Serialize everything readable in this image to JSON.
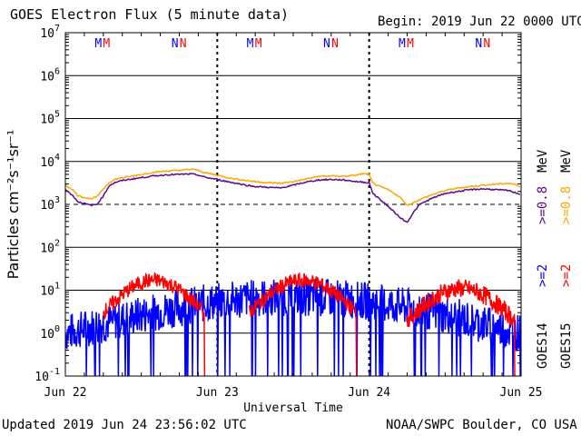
{
  "header": {
    "title": "GOES Electron Flux (5 minute data)",
    "begin": "Begin: 2019 Jun 22 0000 UTC"
  },
  "footer": {
    "updated": "Updated 2019 Jun 24 23:56:02 UTC",
    "credit": "NOAA/SWPC Boulder, CO USA"
  },
  "colors": {
    "goes14": "#0000ff",
    "goes15": "#ff0000",
    "goes14_low_energy": "#5a0a8c",
    "goes15_low_energy": "#ffa500",
    "grid": "#000000"
  },
  "chart_data": {
    "type": "line",
    "y_scale": "log",
    "ylim": [
      0.1,
      10000000
    ],
    "y_ticks": [
      {
        "base": "10",
        "exp": "7"
      },
      {
        "base": "10",
        "exp": "6"
      },
      {
        "base": "10",
        "exp": "5"
      },
      {
        "base": "10",
        "exp": "4"
      },
      {
        "base": "10",
        "exp": "3"
      },
      {
        "base": "10",
        "exp": "2"
      },
      {
        "base": "10",
        "exp": "1"
      },
      {
        "base": "10",
        "exp": "0"
      },
      {
        "base": "10",
        "exp": "-1"
      }
    ],
    "ylabel": "Particles cm⁻²s⁻¹sr⁻¹",
    "xlabel": "Universal Time",
    "x_ticks": [
      "Jun 22",
      "Jun 23",
      "Jun 24",
      "Jun 25"
    ],
    "xlim_hours": [
      0,
      72
    ],
    "reference_line_y": 1000,
    "markers": [
      {
        "label": "M",
        "hour": 5.2,
        "satellite": "GOES14"
      },
      {
        "label": "M",
        "hour": 6.5,
        "satellite": "GOES15"
      },
      {
        "label": "N",
        "hour": 17.3,
        "satellite": "GOES14"
      },
      {
        "label": "N",
        "hour": 18.6,
        "satellite": "GOES15"
      },
      {
        "label": "M",
        "hour": 29.2,
        "satellite": "GOES14"
      },
      {
        "label": "M",
        "hour": 30.5,
        "satellite": "GOES15"
      },
      {
        "label": "N",
        "hour": 41.3,
        "satellite": "GOES14"
      },
      {
        "label": "N",
        "hour": 42.6,
        "satellite": "GOES15"
      },
      {
        "label": "M",
        "hour": 53.2,
        "satellite": "GOES14"
      },
      {
        "label": "M",
        "hour": 54.5,
        "satellite": "GOES15"
      },
      {
        "label": "N",
        "hour": 65.3,
        "satellite": "GOES14"
      },
      {
        "label": "N",
        "hour": 66.6,
        "satellite": "GOES15"
      }
    ],
    "legend": {
      "goes14_label": "GOES14",
      "goes15_label": "GOES15",
      "high_energy": ">=2",
      "low_energy": ">=0.8",
      "unit": "MeV"
    },
    "series": [
      {
        "name": "GOES15 >=0.8 MeV",
        "color": "#ffa500",
        "x": [
          0,
          1,
          2,
          3,
          4,
          5,
          6,
          7,
          8,
          9,
          10,
          12,
          14,
          16,
          18,
          20,
          21,
          22,
          24,
          26,
          28,
          30,
          32,
          34,
          36,
          38,
          40,
          42,
          44,
          46,
          47,
          48,
          48.5,
          49,
          50,
          51,
          52,
          53,
          54,
          55,
          56,
          58,
          60,
          62,
          64,
          66,
          68,
          70,
          71,
          72
        ],
        "values": [
          2800,
          2300,
          1600,
          1450,
          1350,
          1500,
          2300,
          3300,
          3900,
          4200,
          4400,
          5000,
          5600,
          6000,
          6200,
          6600,
          6200,
          5500,
          4800,
          4100,
          3700,
          3400,
          3200,
          3100,
          3400,
          3900,
          4500,
          4600,
          4500,
          4800,
          5200,
          5000,
          3200,
          2900,
          2500,
          2200,
          1800,
          1400,
          950,
          1100,
          1300,
          1700,
          2100,
          2400,
          2600,
          2800,
          2950,
          3100,
          2900,
          2600
        ]
      },
      {
        "name": "GOES14 >=0.8 MeV",
        "color": "#5a0a8c",
        "x": [
          0,
          1,
          2,
          3,
          4,
          5,
          6,
          7,
          8,
          9,
          10,
          12,
          14,
          16,
          18,
          20,
          21,
          22,
          24,
          26,
          28,
          30,
          32,
          34,
          36,
          38,
          40,
          42,
          44,
          46,
          47,
          48,
          48.5,
          49,
          50,
          51,
          52,
          53,
          54,
          55,
          56,
          58,
          60,
          62,
          64,
          66,
          68,
          70,
          71,
          72
        ],
        "values": [
          2200,
          1700,
          1150,
          1050,
          950,
          1000,
          1600,
          2800,
          3300,
          3600,
          3800,
          4200,
          4600,
          4900,
          5000,
          5100,
          4800,
          4300,
          3800,
          3300,
          2900,
          2600,
          2500,
          2400,
          2800,
          3300,
          3700,
          3800,
          3700,
          3400,
          3300,
          3200,
          1900,
          1600,
          1200,
          900,
          650,
          480,
          380,
          650,
          1000,
          1400,
          1800,
          2000,
          2200,
          2300,
          2200,
          2100,
          1900,
          1700
        ]
      }
    ],
    "segments_high_energy": [
      {
        "name": "GOES15 >=2 MeV",
        "color": "#ff0000",
        "start": 6,
        "end": 22,
        "base": 3,
        "peak": 17,
        "noise": 0.18,
        "dropout_after": true
      },
      {
        "name": "GOES15 >=2 MeV",
        "color": "#ff0000",
        "start": 29,
        "end": 46,
        "base": 3,
        "peak": 17,
        "noise": 0.18,
        "dropout_after": true
      },
      {
        "name": "GOES15 >=2 MeV",
        "color": "#ff0000",
        "start": 54,
        "end": 71,
        "base": 2,
        "peak": 11,
        "noise": 0.22,
        "dropout_after": true
      },
      {
        "name": "GOES14 >=2 MeV",
        "color": "#0000ff",
        "start": 0,
        "end": 72,
        "base": 1,
        "peak": 7,
        "noise": 0.45,
        "dropout_after": false
      }
    ]
  }
}
